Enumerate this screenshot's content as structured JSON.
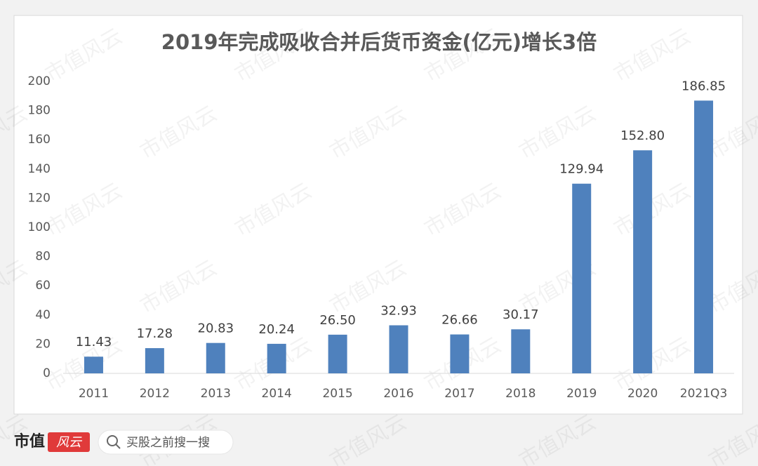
{
  "chart_data": {
    "type": "bar",
    "title": "2019年完成吸收合并后货币资金(亿元)增长3倍",
    "categories": [
      "2011",
      "2012",
      "2013",
      "2014",
      "2015",
      "2016",
      "2017",
      "2018",
      "2019",
      "2020",
      "2021Q3"
    ],
    "values": [
      11.43,
      17.28,
      20.83,
      20.24,
      26.5,
      32.93,
      26.66,
      30.17,
      129.94,
      152.8,
      186.85
    ],
    "value_labels": [
      "11.43",
      "17.28",
      "20.83",
      "20.24",
      "26.50",
      "32.93",
      "26.66",
      "30.17",
      "129.94",
      "152.80",
      "186.85"
    ],
    "color": "#4f81bd",
    "ylim": [
      0,
      200
    ],
    "yticks": [
      0,
      20,
      40,
      60,
      80,
      100,
      120,
      140,
      160,
      180,
      200
    ],
    "grid": false
  },
  "footer": {
    "brand": "市值",
    "brand_badge": "风云",
    "search": "买股之前搜一搜"
  },
  "watermark": "市值风云"
}
